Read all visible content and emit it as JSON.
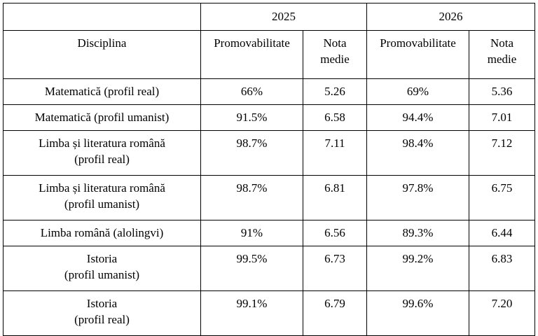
{
  "table": {
    "corner": "",
    "years": [
      "2025",
      "2026"
    ],
    "header": {
      "discipline": "Disciplina",
      "pass_rate": "Promovabilitate",
      "avg_grade": "Nota\nmedie"
    },
    "rows": [
      {
        "discipline": "Matematică (profil real)",
        "p2025": "66%",
        "n2025": "5.26",
        "p2026": "69%",
        "n2026": "5.36"
      },
      {
        "discipline": "Matematică (profil umanist)",
        "p2025": "91.5%",
        "n2025": "6.58",
        "p2026": "94.4%",
        "n2026": "7.01"
      },
      {
        "discipline": "Limba și literatura română\n(profil real)",
        "p2025": "98.7%",
        "n2025": "7.11",
        "p2026": "98.4%",
        "n2026": "7.12"
      },
      {
        "discipline": "Limba și literatura română\n(profil umanist)",
        "p2025": "98.7%",
        "n2025": "6.81",
        "p2026": "97.8%",
        "n2026": "6.75"
      },
      {
        "discipline": "Limba română (alolingvi)",
        "p2025": "91%",
        "n2025": "6.56",
        "p2026": "89.3%",
        "n2026": "6.44"
      },
      {
        "discipline": "Istoria\n(profil umanist)",
        "p2025": "99.5%",
        "n2025": "6.73",
        "p2026": "99.2%",
        "n2026": "6.83"
      },
      {
        "discipline": "Istoria\n(profil real)",
        "p2025": "99.1%",
        "n2025": "6.79",
        "p2026": "99.6%",
        "n2026": "7.20"
      }
    ]
  }
}
